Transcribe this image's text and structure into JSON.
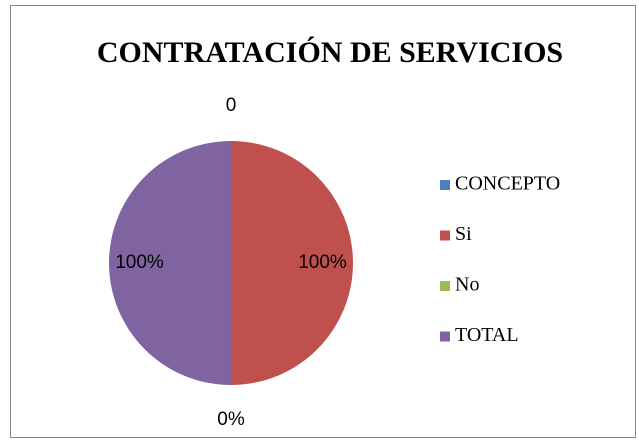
{
  "chart_data": {
    "type": "pie",
    "title": "CONTRATACIÓN DE SERVICIOS",
    "categories": [
      "CONCEPTO",
      "Si",
      "No",
      "TOTAL"
    ],
    "values": [
      0,
      100,
      0,
      100
    ],
    "value_labels": [
      "0",
      "100%",
      "0%",
      "100%"
    ],
    "colors": [
      "#4f81bd",
      "#c0504d",
      "#9bbb59",
      "#8064a2"
    ],
    "legend": "right"
  }
}
